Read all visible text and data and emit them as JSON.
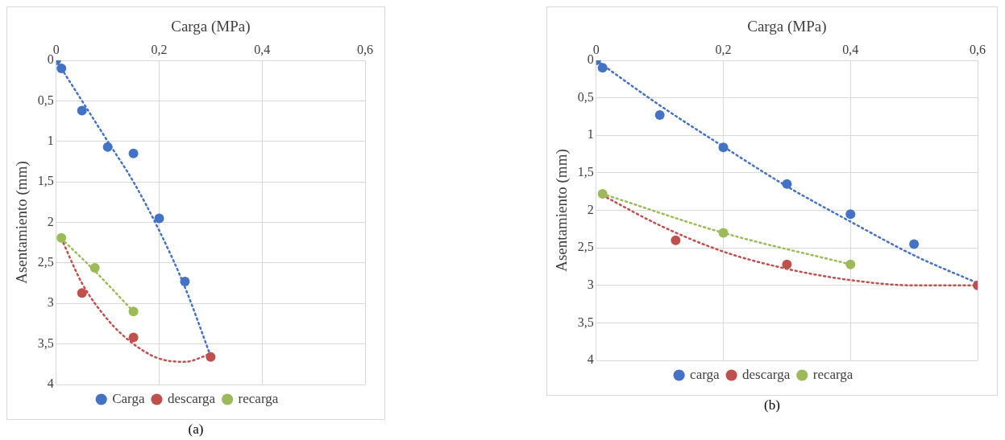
{
  "chart_data": [
    {
      "type": "scatter",
      "xlabel": "Carga (MPa)",
      "ylabel": "Asentamiento (mm)",
      "xlim": [
        0,
        0.6
      ],
      "xticks": [
        0,
        {
          "value": 0.2,
          "label": "0,2"
        },
        {
          "value": 0.4,
          "label": "0,4"
        },
        {
          "value": 0.6,
          "label": "0,6"
        }
      ],
      "ylim": [
        4,
        0
      ],
      "yticks": [
        0,
        {
          "value": 0.5,
          "label": "0,5"
        },
        1,
        {
          "value": 1.5,
          "label": "1,5"
        },
        2,
        {
          "value": 2.5,
          "label": "2,5"
        },
        3,
        {
          "value": 3.5,
          "label": "3,5"
        },
        4
      ],
      "grid": true,
      "legend": "bottom",
      "marker": "circle",
      "annotations": [
        "(a)"
      ],
      "series": [
        {
          "name": "Carga",
          "color": "#4472c4",
          "x": [
            0,
            0.01,
            0.05,
            0.1,
            0.15,
            0.2,
            0.25
          ],
          "values": [
            0,
            0.1,
            0.62,
            1.07,
            1.15,
            1.95,
            2.73
          ]
        },
        {
          "name": "descarga",
          "color": "#c0504d",
          "x": [
            0.3,
            0.15,
            0.05
          ],
          "values": [
            3.66,
            3.42,
            2.87
          ]
        },
        {
          "name": "recarga",
          "color": "#9bbb59",
          "x": [
            0.01,
            0.075,
            0.15
          ],
          "values": [
            2.19,
            2.56,
            3.1
          ]
        },
        {
          "type": "line",
          "marker": "none",
          "line_style": "dotted",
          "color": "#4472c4",
          "x": [
            0,
            0.05,
            0.1,
            0.15,
            0.2,
            0.25,
            0.3
          ],
          "values": [
            0,
            0.5,
            1.0,
            1.5,
            2.1,
            2.8,
            3.65
          ]
        },
        {
          "type": "line",
          "marker": "none",
          "line_style": "dotted",
          "color": "#c0504d",
          "x": [
            0.01,
            0.05,
            0.1,
            0.15,
            0.2,
            0.25,
            0.3
          ],
          "values": [
            2.2,
            2.75,
            3.2,
            3.5,
            3.68,
            3.72,
            3.62
          ]
        },
        {
          "type": "line",
          "marker": "none",
          "line_style": "dotted",
          "color": "#9bbb59",
          "x": [
            0.01,
            0.075,
            0.15
          ],
          "values": [
            2.2,
            2.6,
            3.1
          ]
        }
      ]
    },
    {
      "type": "scatter",
      "xlabel": "Carga (MPa)",
      "ylabel": "Asentamiento (mm)",
      "xlim": [
        0,
        0.6
      ],
      "xticks": [
        0,
        {
          "value": 0.2,
          "label": "0,2"
        },
        {
          "value": 0.4,
          "label": "0,4"
        },
        {
          "value": 0.6,
          "label": "0,6"
        }
      ],
      "ylim": [
        4,
        0
      ],
      "yticks": [
        0,
        {
          "value": 0.5,
          "label": "0,5"
        },
        1,
        {
          "value": 1.5,
          "label": "1,5"
        },
        2,
        {
          "value": 2.5,
          "label": "2,5"
        },
        3,
        {
          "value": 3.5,
          "label": "3,5"
        },
        4
      ],
      "grid": true,
      "legend": "bottom",
      "marker": "circle",
      "annotations": [
        "(b)"
      ],
      "series": [
        {
          "name": "carga",
          "color": "#4472c4",
          "x": [
            0,
            0.01,
            0.1,
            0.2,
            0.3,
            0.4,
            0.5
          ],
          "values": [
            0,
            0.1,
            0.73,
            1.16,
            1.65,
            2.05,
            2.45
          ]
        },
        {
          "name": "descarga",
          "color": "#c0504d",
          "x": [
            0.6,
            0.3,
            0.125
          ],
          "values": [
            3.0,
            2.72,
            2.4
          ]
        },
        {
          "name": "recarga",
          "color": "#9bbb59",
          "x": [
            0.01,
            0.2,
            0.4
          ],
          "values": [
            1.78,
            2.3,
            2.72
          ]
        },
        {
          "type": "line",
          "marker": "none",
          "line_style": "dotted",
          "color": "#4472c4",
          "x": [
            0,
            0.1,
            0.2,
            0.3,
            0.4,
            0.5,
            0.6
          ],
          "values": [
            0,
            0.6,
            1.15,
            1.68,
            2.15,
            2.6,
            2.97
          ]
        },
        {
          "type": "line",
          "marker": "none",
          "line_style": "dotted",
          "color": "#c0504d",
          "x": [
            0.01,
            0.1,
            0.2,
            0.3,
            0.4,
            0.5,
            0.6
          ],
          "values": [
            1.8,
            2.2,
            2.55,
            2.78,
            2.93,
            3.0,
            3.0
          ]
        },
        {
          "type": "line",
          "marker": "none",
          "line_style": "dotted",
          "color": "#9bbb59",
          "x": [
            0.01,
            0.2,
            0.4
          ],
          "values": [
            1.78,
            2.3,
            2.72
          ]
        }
      ]
    }
  ]
}
